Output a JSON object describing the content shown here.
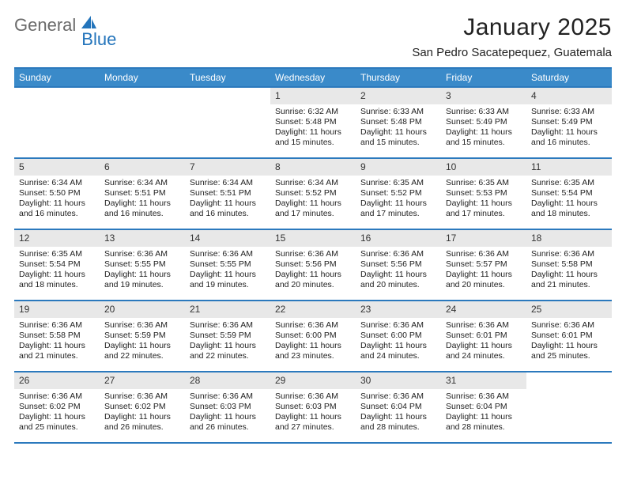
{
  "logo": {
    "word1": "General",
    "word2": "Blue"
  },
  "title": "January 2025",
  "location": "San Pedro Sacatepequez, Guatemala",
  "colors": {
    "header_bg": "#3a8ac9",
    "border": "#2b79bd",
    "daynum_bg": "#e8e8e8",
    "text": "#222222",
    "logo_gray": "#6a6a6a",
    "logo_blue": "#2374bb"
  },
  "weekdays": [
    "Sunday",
    "Monday",
    "Tuesday",
    "Wednesday",
    "Thursday",
    "Friday",
    "Saturday"
  ],
  "weeks": [
    [
      null,
      null,
      null,
      {
        "n": "1",
        "sr": "6:32 AM",
        "ss": "5:48 PM",
        "dl": "11 hours and 15 minutes."
      },
      {
        "n": "2",
        "sr": "6:33 AM",
        "ss": "5:48 PM",
        "dl": "11 hours and 15 minutes."
      },
      {
        "n": "3",
        "sr": "6:33 AM",
        "ss": "5:49 PM",
        "dl": "11 hours and 15 minutes."
      },
      {
        "n": "4",
        "sr": "6:33 AM",
        "ss": "5:49 PM",
        "dl": "11 hours and 16 minutes."
      }
    ],
    [
      {
        "n": "5",
        "sr": "6:34 AM",
        "ss": "5:50 PM",
        "dl": "11 hours and 16 minutes."
      },
      {
        "n": "6",
        "sr": "6:34 AM",
        "ss": "5:51 PM",
        "dl": "11 hours and 16 minutes."
      },
      {
        "n": "7",
        "sr": "6:34 AM",
        "ss": "5:51 PM",
        "dl": "11 hours and 16 minutes."
      },
      {
        "n": "8",
        "sr": "6:34 AM",
        "ss": "5:52 PM",
        "dl": "11 hours and 17 minutes."
      },
      {
        "n": "9",
        "sr": "6:35 AM",
        "ss": "5:52 PM",
        "dl": "11 hours and 17 minutes."
      },
      {
        "n": "10",
        "sr": "6:35 AM",
        "ss": "5:53 PM",
        "dl": "11 hours and 17 minutes."
      },
      {
        "n": "11",
        "sr": "6:35 AM",
        "ss": "5:54 PM",
        "dl": "11 hours and 18 minutes."
      }
    ],
    [
      {
        "n": "12",
        "sr": "6:35 AM",
        "ss": "5:54 PM",
        "dl": "11 hours and 18 minutes."
      },
      {
        "n": "13",
        "sr": "6:36 AM",
        "ss": "5:55 PM",
        "dl": "11 hours and 19 minutes."
      },
      {
        "n": "14",
        "sr": "6:36 AM",
        "ss": "5:55 PM",
        "dl": "11 hours and 19 minutes."
      },
      {
        "n": "15",
        "sr": "6:36 AM",
        "ss": "5:56 PM",
        "dl": "11 hours and 20 minutes."
      },
      {
        "n": "16",
        "sr": "6:36 AM",
        "ss": "5:56 PM",
        "dl": "11 hours and 20 minutes."
      },
      {
        "n": "17",
        "sr": "6:36 AM",
        "ss": "5:57 PM",
        "dl": "11 hours and 20 minutes."
      },
      {
        "n": "18",
        "sr": "6:36 AM",
        "ss": "5:58 PM",
        "dl": "11 hours and 21 minutes."
      }
    ],
    [
      {
        "n": "19",
        "sr": "6:36 AM",
        "ss": "5:58 PM",
        "dl": "11 hours and 21 minutes."
      },
      {
        "n": "20",
        "sr": "6:36 AM",
        "ss": "5:59 PM",
        "dl": "11 hours and 22 minutes."
      },
      {
        "n": "21",
        "sr": "6:36 AM",
        "ss": "5:59 PM",
        "dl": "11 hours and 22 minutes."
      },
      {
        "n": "22",
        "sr": "6:36 AM",
        "ss": "6:00 PM",
        "dl": "11 hours and 23 minutes."
      },
      {
        "n": "23",
        "sr": "6:36 AM",
        "ss": "6:00 PM",
        "dl": "11 hours and 24 minutes."
      },
      {
        "n": "24",
        "sr": "6:36 AM",
        "ss": "6:01 PM",
        "dl": "11 hours and 24 minutes."
      },
      {
        "n": "25",
        "sr": "6:36 AM",
        "ss": "6:01 PM",
        "dl": "11 hours and 25 minutes."
      }
    ],
    [
      {
        "n": "26",
        "sr": "6:36 AM",
        "ss": "6:02 PM",
        "dl": "11 hours and 25 minutes."
      },
      {
        "n": "27",
        "sr": "6:36 AM",
        "ss": "6:02 PM",
        "dl": "11 hours and 26 minutes."
      },
      {
        "n": "28",
        "sr": "6:36 AM",
        "ss": "6:03 PM",
        "dl": "11 hours and 26 minutes."
      },
      {
        "n": "29",
        "sr": "6:36 AM",
        "ss": "6:03 PM",
        "dl": "11 hours and 27 minutes."
      },
      {
        "n": "30",
        "sr": "6:36 AM",
        "ss": "6:04 PM",
        "dl": "11 hours and 28 minutes."
      },
      {
        "n": "31",
        "sr": "6:36 AM",
        "ss": "6:04 PM",
        "dl": "11 hours and 28 minutes."
      },
      null
    ]
  ],
  "labels": {
    "sunrise": "Sunrise:",
    "sunset": "Sunset:",
    "daylight": "Daylight:"
  }
}
